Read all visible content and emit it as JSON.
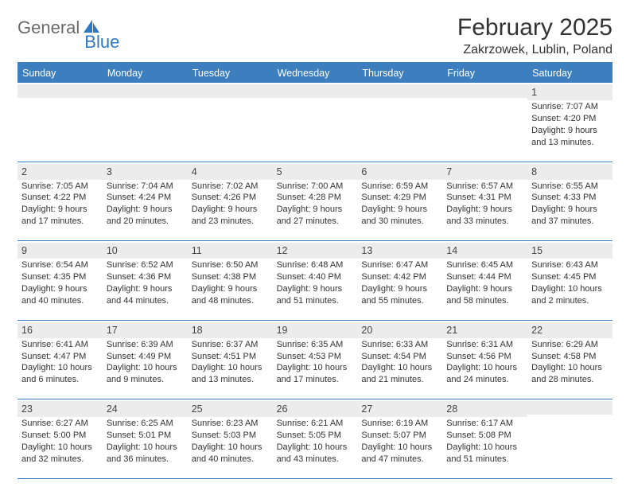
{
  "brand": {
    "word1": "General",
    "word2": "Blue",
    "color1": "#6a6a6a",
    "color2": "#2f78c2",
    "icon_color": "#2f78c2"
  },
  "title": "February 2025",
  "location": "Zakrzowek, Lublin, Poland",
  "weekdays": [
    "Sunday",
    "Monday",
    "Tuesday",
    "Wednesday",
    "Thursday",
    "Friday",
    "Saturday"
  ],
  "header_bg": "#3d7ebf",
  "weeks": [
    [
      {
        "n": "",
        "sr": "",
        "ss": "",
        "dl": ""
      },
      {
        "n": "",
        "sr": "",
        "ss": "",
        "dl": ""
      },
      {
        "n": "",
        "sr": "",
        "ss": "",
        "dl": ""
      },
      {
        "n": "",
        "sr": "",
        "ss": "",
        "dl": ""
      },
      {
        "n": "",
        "sr": "",
        "ss": "",
        "dl": ""
      },
      {
        "n": "",
        "sr": "",
        "ss": "",
        "dl": ""
      },
      {
        "n": "1",
        "sr": "Sunrise: 7:07 AM",
        "ss": "Sunset: 4:20 PM",
        "dl": "Daylight: 9 hours and 13 minutes."
      }
    ],
    [
      {
        "n": "2",
        "sr": "Sunrise: 7:05 AM",
        "ss": "Sunset: 4:22 PM",
        "dl": "Daylight: 9 hours and 17 minutes."
      },
      {
        "n": "3",
        "sr": "Sunrise: 7:04 AM",
        "ss": "Sunset: 4:24 PM",
        "dl": "Daylight: 9 hours and 20 minutes."
      },
      {
        "n": "4",
        "sr": "Sunrise: 7:02 AM",
        "ss": "Sunset: 4:26 PM",
        "dl": "Daylight: 9 hours and 23 minutes."
      },
      {
        "n": "5",
        "sr": "Sunrise: 7:00 AM",
        "ss": "Sunset: 4:28 PM",
        "dl": "Daylight: 9 hours and 27 minutes."
      },
      {
        "n": "6",
        "sr": "Sunrise: 6:59 AM",
        "ss": "Sunset: 4:29 PM",
        "dl": "Daylight: 9 hours and 30 minutes."
      },
      {
        "n": "7",
        "sr": "Sunrise: 6:57 AM",
        "ss": "Sunset: 4:31 PM",
        "dl": "Daylight: 9 hours and 33 minutes."
      },
      {
        "n": "8",
        "sr": "Sunrise: 6:55 AM",
        "ss": "Sunset: 4:33 PM",
        "dl": "Daylight: 9 hours and 37 minutes."
      }
    ],
    [
      {
        "n": "9",
        "sr": "Sunrise: 6:54 AM",
        "ss": "Sunset: 4:35 PM",
        "dl": "Daylight: 9 hours and 40 minutes."
      },
      {
        "n": "10",
        "sr": "Sunrise: 6:52 AM",
        "ss": "Sunset: 4:36 PM",
        "dl": "Daylight: 9 hours and 44 minutes."
      },
      {
        "n": "11",
        "sr": "Sunrise: 6:50 AM",
        "ss": "Sunset: 4:38 PM",
        "dl": "Daylight: 9 hours and 48 minutes."
      },
      {
        "n": "12",
        "sr": "Sunrise: 6:48 AM",
        "ss": "Sunset: 4:40 PM",
        "dl": "Daylight: 9 hours and 51 minutes."
      },
      {
        "n": "13",
        "sr": "Sunrise: 6:47 AM",
        "ss": "Sunset: 4:42 PM",
        "dl": "Daylight: 9 hours and 55 minutes."
      },
      {
        "n": "14",
        "sr": "Sunrise: 6:45 AM",
        "ss": "Sunset: 4:44 PM",
        "dl": "Daylight: 9 hours and 58 minutes."
      },
      {
        "n": "15",
        "sr": "Sunrise: 6:43 AM",
        "ss": "Sunset: 4:45 PM",
        "dl": "Daylight: 10 hours and 2 minutes."
      }
    ],
    [
      {
        "n": "16",
        "sr": "Sunrise: 6:41 AM",
        "ss": "Sunset: 4:47 PM",
        "dl": "Daylight: 10 hours and 6 minutes."
      },
      {
        "n": "17",
        "sr": "Sunrise: 6:39 AM",
        "ss": "Sunset: 4:49 PM",
        "dl": "Daylight: 10 hours and 9 minutes."
      },
      {
        "n": "18",
        "sr": "Sunrise: 6:37 AM",
        "ss": "Sunset: 4:51 PM",
        "dl": "Daylight: 10 hours and 13 minutes."
      },
      {
        "n": "19",
        "sr": "Sunrise: 6:35 AM",
        "ss": "Sunset: 4:53 PM",
        "dl": "Daylight: 10 hours and 17 minutes."
      },
      {
        "n": "20",
        "sr": "Sunrise: 6:33 AM",
        "ss": "Sunset: 4:54 PM",
        "dl": "Daylight: 10 hours and 21 minutes."
      },
      {
        "n": "21",
        "sr": "Sunrise: 6:31 AM",
        "ss": "Sunset: 4:56 PM",
        "dl": "Daylight: 10 hours and 24 minutes."
      },
      {
        "n": "22",
        "sr": "Sunrise: 6:29 AM",
        "ss": "Sunset: 4:58 PM",
        "dl": "Daylight: 10 hours and 28 minutes."
      }
    ],
    [
      {
        "n": "23",
        "sr": "Sunrise: 6:27 AM",
        "ss": "Sunset: 5:00 PM",
        "dl": "Daylight: 10 hours and 32 minutes."
      },
      {
        "n": "24",
        "sr": "Sunrise: 6:25 AM",
        "ss": "Sunset: 5:01 PM",
        "dl": "Daylight: 10 hours and 36 minutes."
      },
      {
        "n": "25",
        "sr": "Sunrise: 6:23 AM",
        "ss": "Sunset: 5:03 PM",
        "dl": "Daylight: 10 hours and 40 minutes."
      },
      {
        "n": "26",
        "sr": "Sunrise: 6:21 AM",
        "ss": "Sunset: 5:05 PM",
        "dl": "Daylight: 10 hours and 43 minutes."
      },
      {
        "n": "27",
        "sr": "Sunrise: 6:19 AM",
        "ss": "Sunset: 5:07 PM",
        "dl": "Daylight: 10 hours and 47 minutes."
      },
      {
        "n": "28",
        "sr": "Sunrise: 6:17 AM",
        "ss": "Sunset: 5:08 PM",
        "dl": "Daylight: 10 hours and 51 minutes."
      },
      {
        "n": "",
        "sr": "",
        "ss": "",
        "dl": ""
      }
    ]
  ]
}
